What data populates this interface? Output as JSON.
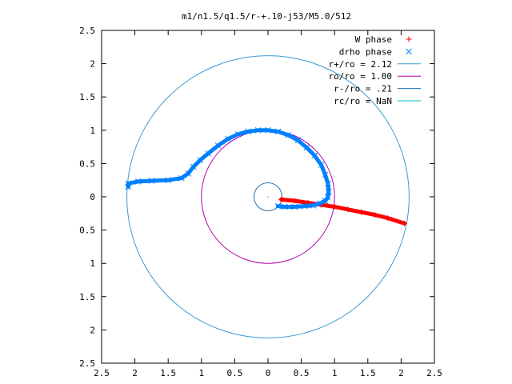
{
  "chart_data": {
    "type": "scatter",
    "title": "m1/n1.5/q1.5/r-+.10-j53/M5.0/512",
    "xlabel": "",
    "ylabel": "",
    "xlim": [
      -2.5,
      2.5
    ],
    "ylim": [
      -2.5,
      2.5
    ],
    "grid": false,
    "legend_position": "top-right",
    "x_ticks": [
      "2.5",
      "2",
      "1.5",
      "1",
      "0.5",
      "0",
      "0.5",
      "1",
      "1.5",
      "2",
      "2.5"
    ],
    "y_ticks": [
      "2.5",
      "2",
      "1.5",
      "1",
      "0.5",
      "0",
      "0.5",
      "1",
      "1.5",
      "2",
      "2.5"
    ],
    "series": [
      {
        "name": "W phase",
        "marker": "+",
        "color": "#ff0000",
        "x": [
          0.2,
          0.4,
          0.6,
          0.8,
          1.0,
          1.2,
          1.4,
          1.6,
          1.8,
          2.05
        ],
        "y": [
          -0.04,
          -0.06,
          -0.09,
          -0.12,
          -0.15,
          -0.19,
          -0.23,
          -0.27,
          -0.32,
          -0.4
        ]
      },
      {
        "name": "drho phase",
        "marker": "x",
        "color": "#0080ff",
        "x": [
          -2.1,
          -2.1,
          -1.95,
          -1.75,
          -1.5,
          -1.3,
          -1.2,
          -1.12,
          -1.02,
          -0.9,
          -0.75,
          -0.6,
          -0.45,
          -0.3,
          -0.15,
          0.0,
          0.15,
          0.3,
          0.45,
          0.58,
          0.7,
          0.8,
          0.86,
          0.9,
          0.91,
          0.9,
          0.86,
          0.78,
          0.68,
          0.55,
          0.4,
          0.25,
          0.15
        ],
        "y": [
          0.15,
          0.2,
          0.23,
          0.24,
          0.25,
          0.28,
          0.35,
          0.45,
          0.55,
          0.65,
          0.77,
          0.87,
          0.94,
          0.98,
          1.0,
          1.0,
          0.98,
          0.93,
          0.85,
          0.74,
          0.62,
          0.48,
          0.33,
          0.2,
          0.08,
          -0.01,
          -0.06,
          -0.1,
          -0.13,
          -0.14,
          -0.15,
          -0.15,
          -0.14
        ]
      },
      {
        "name": "r+/ro = 2.12",
        "type": "circle",
        "radius": 2.12,
        "color": "#3b9bd4"
      },
      {
        "name": "ro/ro = 1.00",
        "type": "circle",
        "radius": 1.0,
        "color": "#b000b0"
      },
      {
        "name": "r-/ro = .21",
        "type": "circle",
        "radius": 0.21,
        "color": "#1f6fb3"
      },
      {
        "name": "rc/ro = NaN",
        "type": "circle",
        "radius": null,
        "color": "#00c0c0"
      }
    ],
    "center_dot": {
      "x": 0,
      "y": 0
    }
  }
}
